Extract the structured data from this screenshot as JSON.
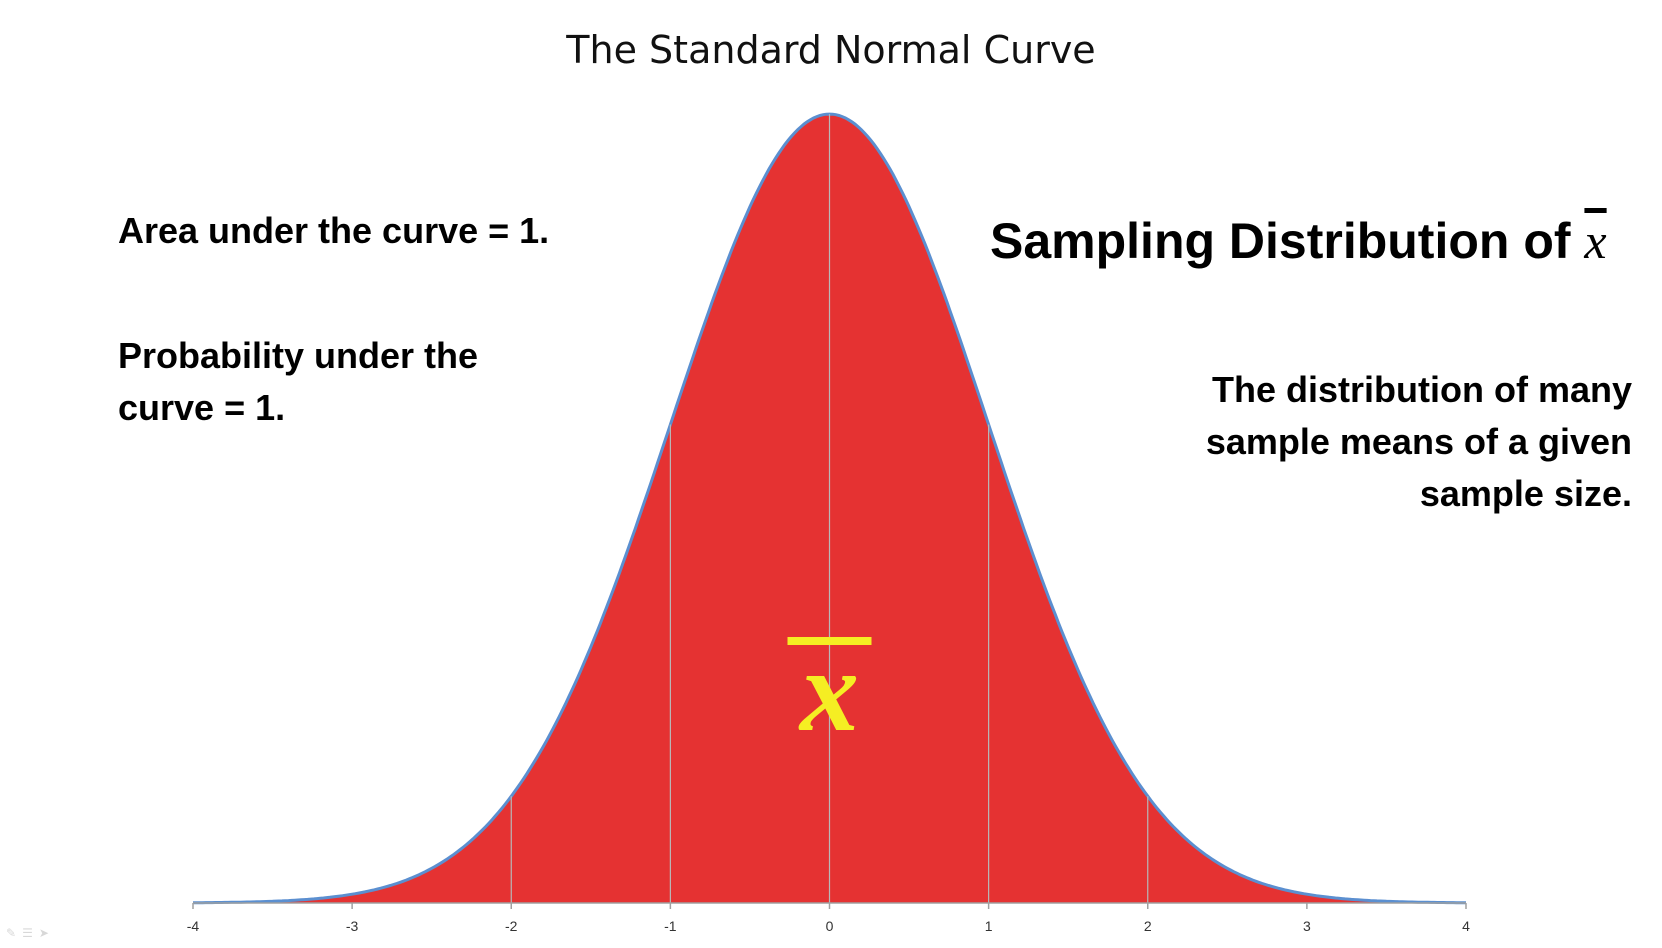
{
  "chart_data": {
    "type": "area",
    "title": "The Standard Normal Curve",
    "xlabel": "",
    "ylabel": "",
    "xlim": [
      -4,
      4
    ],
    "ylim": [
      0,
      0.4
    ],
    "x_ticks": [
      "-4",
      "-3",
      "-2",
      "-1",
      "0",
      "1",
      "2",
      "3",
      "4"
    ],
    "vertical_gridlines_at": [
      -2,
      -1,
      0,
      1,
      2
    ],
    "series": [
      {
        "distribution": "standard normal",
        "mean": 0,
        "sd": 1,
        "x": [
          -4,
          -3.5,
          -3,
          -2.5,
          -2,
          -1.5,
          -1,
          -0.5,
          0,
          0.5,
          1,
          1.5,
          2,
          2.5,
          3,
          3.5,
          4
        ],
        "y": [
          0.0001,
          0.0009,
          0.0044,
          0.0175,
          0.054,
          0.1295,
          0.242,
          0.3521,
          0.3989,
          0.3521,
          0.242,
          0.1295,
          0.054,
          0.0175,
          0.0044,
          0.0009,
          0.0001
        ]
      }
    ],
    "fill_color": "#e53232",
    "line_color": "#5b8fd0",
    "grid_color": "#b8b8b8",
    "center_symbol": "x̄",
    "center_symbol_color": "#f5ee23"
  },
  "notes": {
    "area": "Area under the curve = 1.",
    "probability": "Probability under the curve = 1.",
    "sampling_prefix": "Sampling Distribution of ",
    "sampling_symbol": "x",
    "distribution": "The distribution of many sample means of a given sample size."
  },
  "corner_icons": [
    "pen-icon",
    "menu-icon",
    "pointer-icon"
  ]
}
